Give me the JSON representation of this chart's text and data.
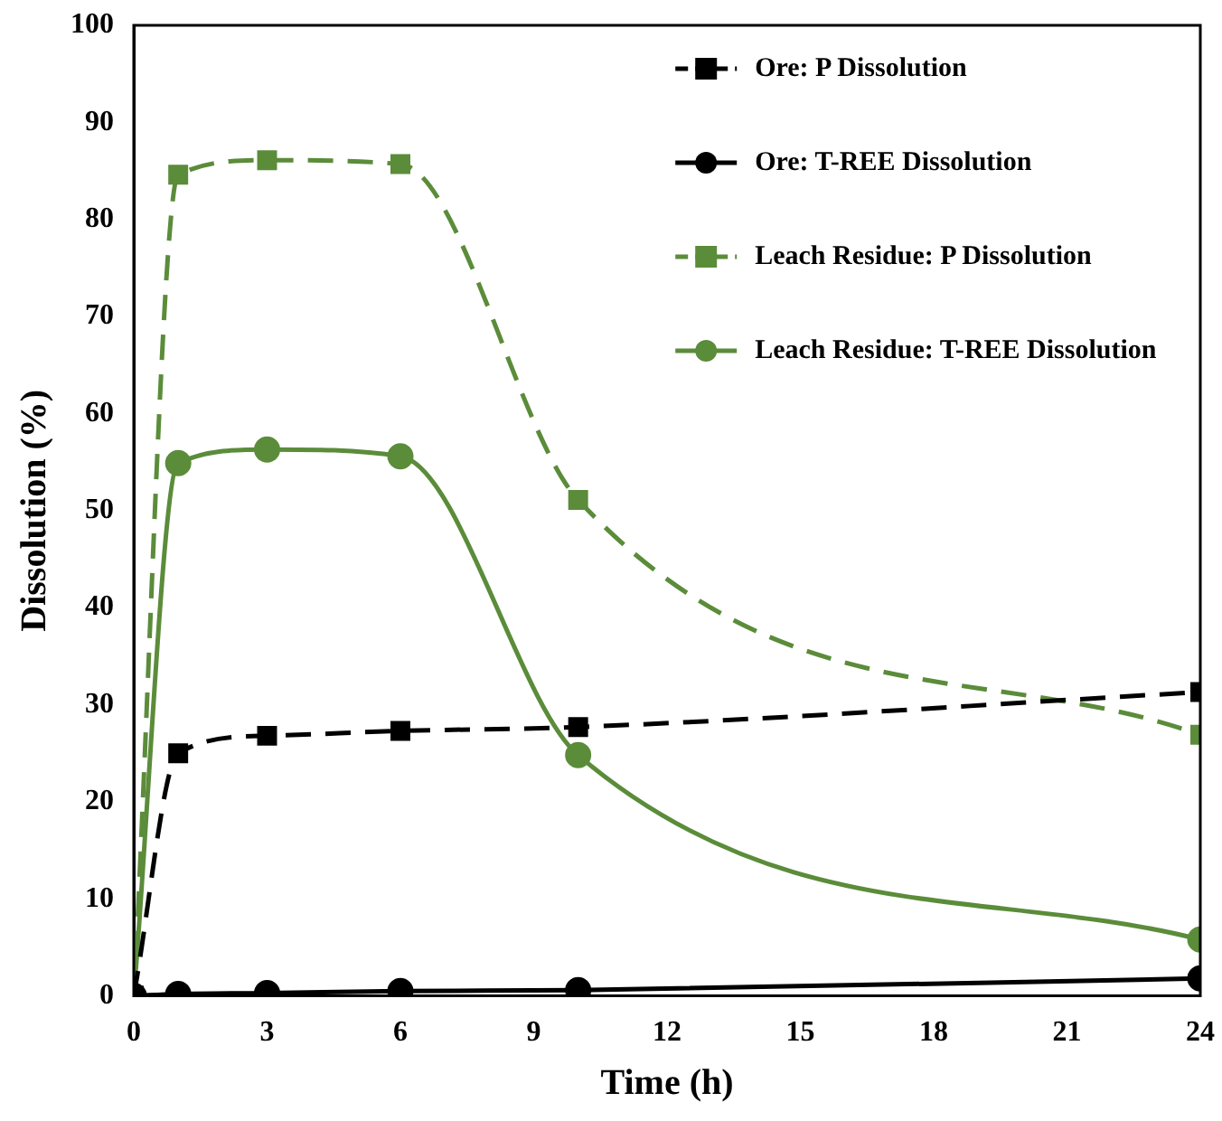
{
  "chart_data": {
    "type": "line",
    "xlabel": "Time (h)",
    "ylabel": "Dissolution (%)",
    "x": [
      0,
      1,
      3,
      6,
      10,
      24
    ],
    "series": [
      {
        "name": "Ore: P Dissolution",
        "color": "#000000",
        "marker": "square",
        "line_style": "dashed",
        "values": [
          0,
          25,
          26.8,
          27.3,
          27.7,
          31.3
        ]
      },
      {
        "name": "Ore: T-REE Dissolution",
        "color": "#000000",
        "marker": "circle",
        "line_style": "solid",
        "values": [
          0,
          0.2,
          0.3,
          0.5,
          0.6,
          1.8
        ]
      },
      {
        "name": "Leach Residue: P Dissolution",
        "color": "#5b8c3a",
        "marker": "square",
        "line_style": "dashed",
        "values": [
          0,
          84.6,
          86.1,
          85.7,
          51.1,
          26.9
        ]
      },
      {
        "name": "Leach Residue: T-REE Dissolution",
        "color": "#5b8c3a",
        "marker": "circle",
        "line_style": "solid",
        "values": [
          0,
          54.9,
          56.3,
          55.6,
          24.8,
          5.8
        ]
      }
    ],
    "xlim": [
      0,
      24
    ],
    "xticks": [
      0,
      3,
      6,
      9,
      12,
      15,
      18,
      21,
      24
    ],
    "ylim": [
      0,
      100
    ],
    "yticks": [
      0,
      10,
      20,
      30,
      40,
      50,
      60,
      70,
      80,
      90,
      100
    ],
    "grid": false,
    "legend": "top right"
  }
}
